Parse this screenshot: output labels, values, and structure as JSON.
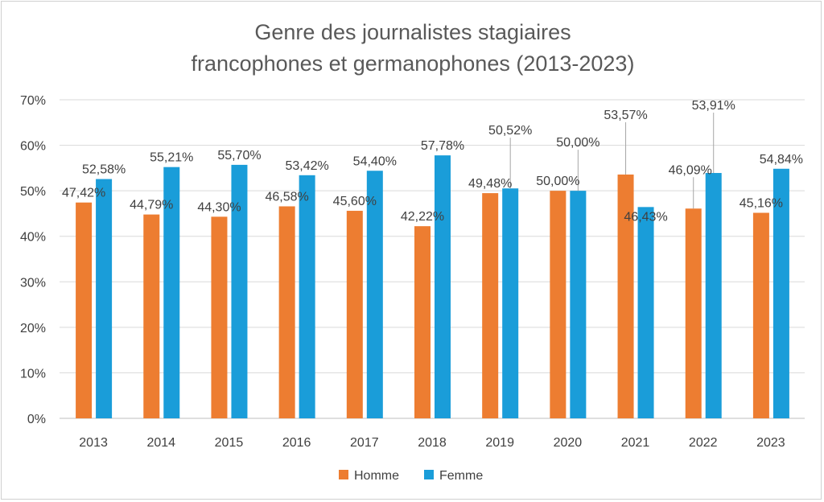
{
  "chart_data": {
    "type": "bar",
    "title": [
      "Genre des journalistes stagiaires",
      "francophones et germanophones (2013-2023)"
    ],
    "categories": [
      "2013",
      "2014",
      "2015",
      "2016",
      "2017",
      "2018",
      "2019",
      "2020",
      "2021",
      "2022",
      "2023"
    ],
    "series": [
      {
        "name": "Homme",
        "color": "#ED7D31",
        "values": [
          47.42,
          44.79,
          44.3,
          46.58,
          45.6,
          42.22,
          49.48,
          50.0,
          53.57,
          46.09,
          45.16
        ],
        "labels": [
          "47,42%",
          "44,79%",
          "44,30%",
          "46,58%",
          "45,60%",
          "42,22%",
          "49,48%",
          "50,00%",
          "53,57%",
          "46,09%",
          "45,16%"
        ]
      },
      {
        "name": "Femme",
        "color": "#1A9DD9",
        "values": [
          52.58,
          55.21,
          55.7,
          53.42,
          54.4,
          57.78,
          50.52,
          50.0,
          46.43,
          53.91,
          54.84
        ],
        "labels": [
          "52,58%",
          "55,21%",
          "55,70%",
          "53,42%",
          "54,40%",
          "57,78%",
          "50,52%",
          "50,00%",
          "46,43%",
          "53,91%",
          "54,84%"
        ]
      }
    ],
    "yticks": [
      "0%",
      "10%",
      "20%",
      "30%",
      "40%",
      "50%",
      "60%",
      "70%"
    ],
    "ylim": [
      0,
      70
    ],
    "grid": true,
    "legend_position": "bottom"
  }
}
